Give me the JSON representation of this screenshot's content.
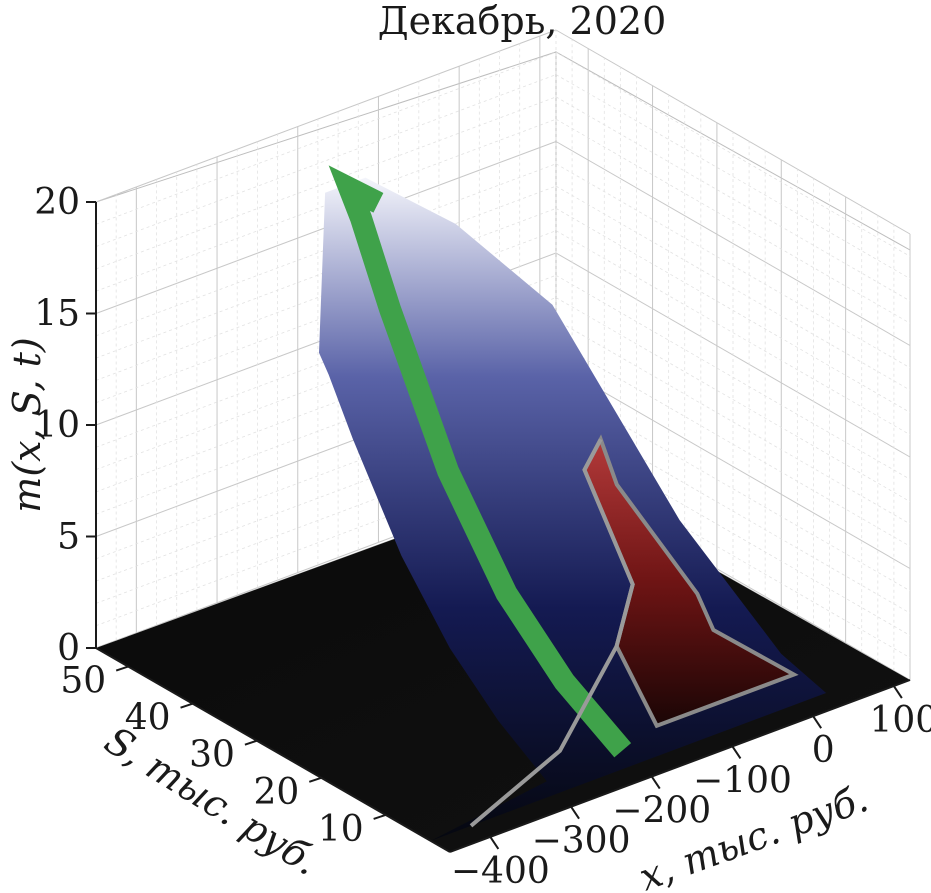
{
  "chart_data": {
    "type": "surface3d",
    "title": "Декабрь, 2020",
    "zlabel": "m(x, S, t)",
    "xlabel": "x, тыс. руб.",
    "ylabel": "S, тыс. руб.",
    "z_ticks": [
      "0",
      "5",
      "10",
      "15",
      "20"
    ],
    "x_ticks": [
      "−400",
      "−300",
      "−200",
      "−100",
      "0",
      "100"
    ],
    "s_ticks": [
      "10",
      "20",
      "30",
      "40",
      "50"
    ],
    "zlim": [
      0,
      20
    ],
    "xlim": [
      -450,
      120
    ],
    "slim": [
      0,
      55
    ],
    "grid": true,
    "surface_color": "#1c2373",
    "peak": {
      "x": -150,
      "S": 52,
      "m": 17.4
    },
    "highlight_curves": [
      {
        "name": "",
        "color": "#3fa24a",
        "description_from_figure": "band along surface ridge"
      },
      {
        "name": "",
        "color": "#8b1e1e",
        "description_from_figure": "front cross-section"
      }
    ],
    "ridge_profile": [
      {
        "S": 5,
        "m": 0.3
      },
      {
        "S": 15,
        "m": 1.6
      },
      {
        "S": 25,
        "m": 3.8
      },
      {
        "S": 35,
        "m": 7.5
      },
      {
        "S": 45,
        "m": 13.0
      },
      {
        "S": 50,
        "m": 16.2
      },
      {
        "S": 52,
        "m": 17.2
      }
    ],
    "front_section": [
      {
        "x": -100,
        "m": 1.5
      },
      {
        "x": -80,
        "m": 4.0
      },
      {
        "x": -60,
        "m": 7.2
      },
      {
        "x": -40,
        "m": 8.3
      },
      {
        "x": -20,
        "m": 6.0
      },
      {
        "x": 0,
        "m": 2.5
      },
      {
        "x": 20,
        "m": 0.6
      }
    ]
  }
}
